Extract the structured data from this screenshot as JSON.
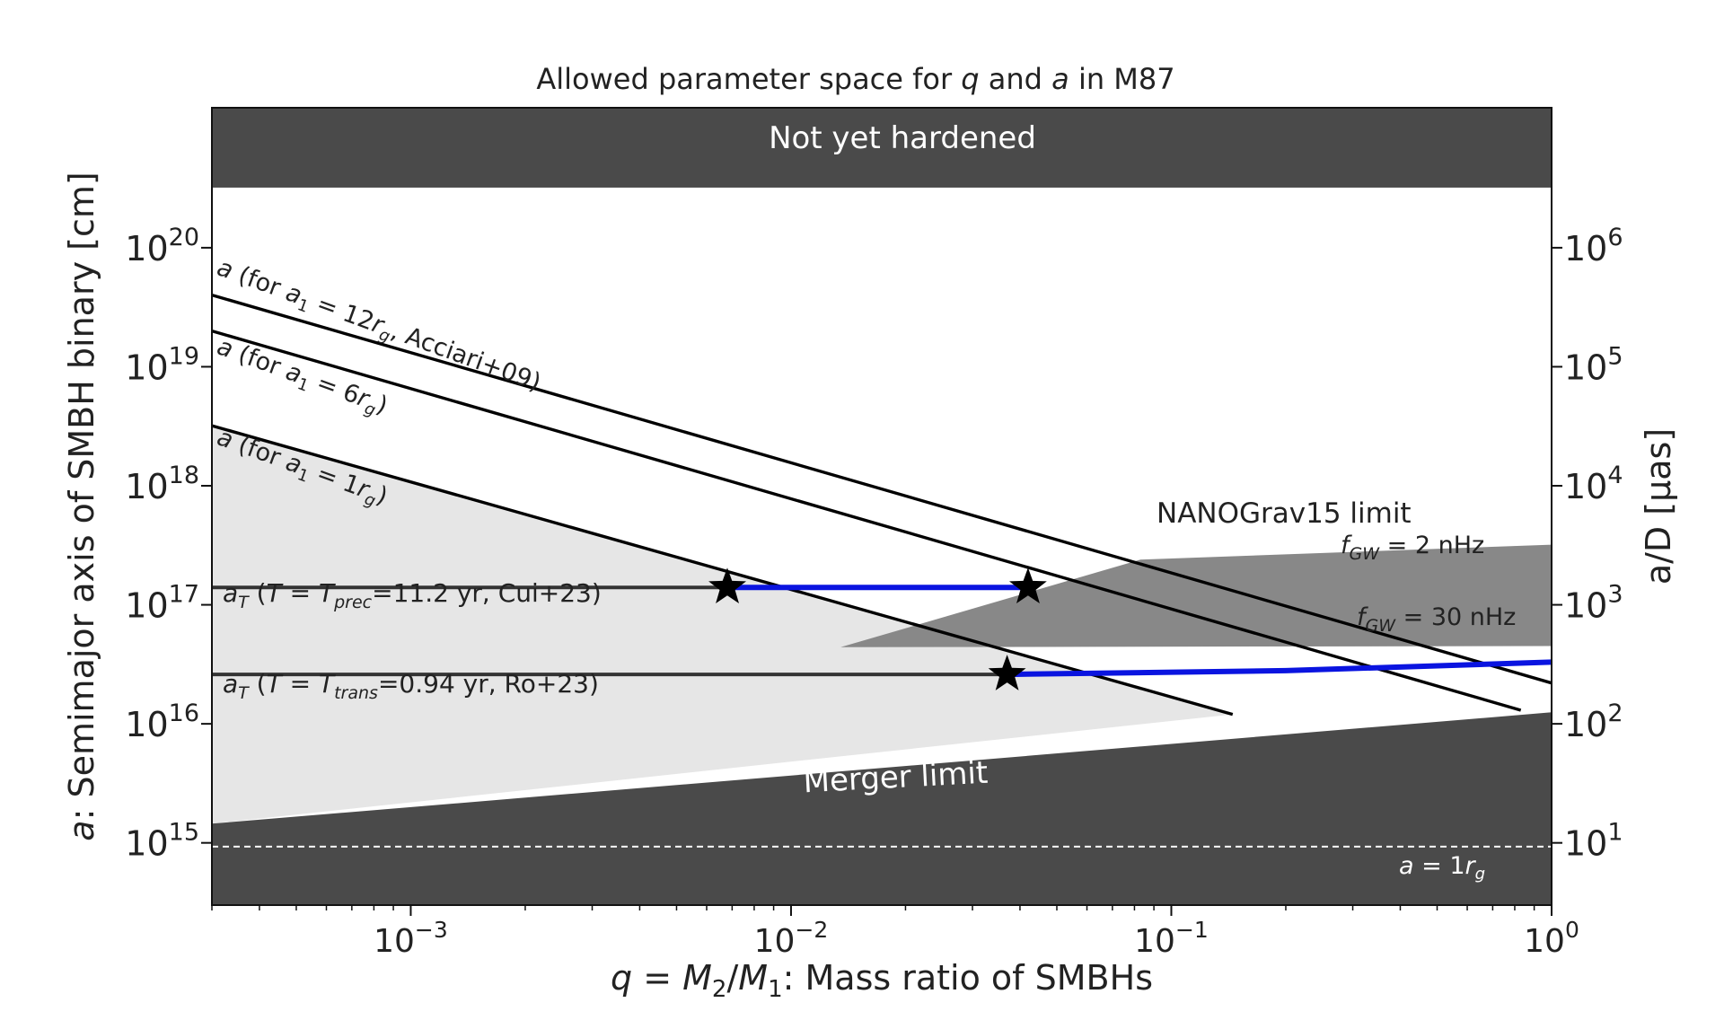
{
  "chart_data": {
    "type": "line",
    "title": "Allowed parameter space for q and a in M87",
    "xlabel": "q = M2/M1: Mass ratio of SMBHs",
    "ylabel": "a: Semimajor axis of SMBH binary [cm]",
    "y2label": "a/D [μas]",
    "xscale": "log",
    "yscale": "log",
    "xlim": [
      0.0003,
      1.0
    ],
    "ylim": [
      300000000000000.0,
      1.5e+21
    ],
    "y2lim": [
      3,
      15000000
    ],
    "x_ticks": [
      0.001,
      0.01,
      0.1,
      1
    ],
    "x_tick_labels": [
      {
        "base": "10",
        "exp": "−3"
      },
      {
        "base": "10",
        "exp": "−2"
      },
      {
        "base": "10",
        "exp": "−1"
      },
      {
        "base": "10",
        "exp": "0"
      }
    ],
    "y_ticks": [
      1000000000000000.0,
      1e+16,
      1e+17,
      1e+18,
      1e+19,
      1e+20
    ],
    "y_tick_labels": [
      {
        "base": "10",
        "exp": "15"
      },
      {
        "base": "10",
        "exp": "16"
      },
      {
        "base": "10",
        "exp": "17"
      },
      {
        "base": "10",
        "exp": "18"
      },
      {
        "base": "10",
        "exp": "19"
      },
      {
        "base": "10",
        "exp": "20"
      }
    ],
    "y2_ticks": [
      10,
      100,
      1000,
      10000,
      100000,
      1000000
    ],
    "y2_tick_labels": [
      {
        "base": "10",
        "exp": "1"
      },
      {
        "base": "10",
        "exp": "2"
      },
      {
        "base": "10",
        "exp": "3"
      },
      {
        "base": "10",
        "exp": "4"
      },
      {
        "base": "10",
        "exp": "5"
      },
      {
        "base": "10",
        "exp": "6"
      }
    ],
    "grid": false,
    "regions": [
      {
        "label": "Not yet hardened",
        "a_min": 3.2e+20,
        "color": "#4a4a4a"
      },
      {
        "label": "Merger limit",
        "boundary": {
          "q": [
            0.0003,
            1.0
          ],
          "a": [
            1450000000000000.0,
            1.25e+16
          ]
        },
        "color": "#4a4a4a"
      },
      {
        "label": "NANOGrav15 limit",
        "polygon": {
          "q": [
            0.0135,
            0.083,
            1.0,
            1.0,
            0.0135
          ],
          "a": [
            4.4e+16,
            2.4e+17,
            3.2e+17,
            4.5e+16,
            4.4e+16
          ]
        },
        "color": "#888888"
      },
      {
        "label": "",
        "note": "allowed region (light gray)",
        "polygon": {
          "q": [
            0.0003,
            0.0003,
            0.145
          ],
          "a": [
            1450000000000000.0,
            3.2e+18,
            1.2e+16
          ]
        },
        "color": "#e6e6e6"
      }
    ],
    "region_labels": {
      "nanograv_2nhz": "f_GW = 2 nHz",
      "nanograv_30nhz": "f_GW = 30 nHz"
    },
    "series": [
      {
        "name": "a (for a1 = 12rg, Acciari+09)",
        "q": [
          0.0003,
          1.0
        ],
        "a": [
          4e+19,
          2.2e+16
        ],
        "color": "#000000"
      },
      {
        "name": "a (for a1 = 6rg)",
        "q": [
          0.0003,
          0.83
        ],
        "a": [
          2e+19,
          1.3e+16
        ],
        "color": "#000000"
      },
      {
        "name": "a (for a1 = 1rg)",
        "q": [
          0.0003,
          0.145
        ],
        "a": [
          3.2e+18,
          1.2e+16
        ],
        "color": "#000000"
      }
    ],
    "horizontal_lines": [
      {
        "name": "aT (T = Tprec=11.2 yr, Cui+23)",
        "a": 1.4e+17,
        "q_range": [
          0.0003,
          0.0068
        ],
        "color": "#333333"
      },
      {
        "name": "aT (T = Ttrans=0.94 yr, Ro+23)",
        "a": 2.6e+16,
        "q_range": [
          0.0003,
          0.037
        ],
        "color": "#333333"
      },
      {
        "name": "a = 1rg",
        "a": 930000000000000.0,
        "q_range": [
          0.0003,
          1.0
        ],
        "color": "#ffffff",
        "dashed": true
      }
    ],
    "blue_segments": [
      {
        "q": [
          0.0068,
          0.042
        ],
        "a": [
          1.4e+17,
          1.4e+17
        ],
        "color": "#0a14e0"
      },
      {
        "q": [
          0.037,
          0.2,
          1.0
        ],
        "a": [
          2.6e+16,
          2.8e+16,
          3.3e+16
        ],
        "color": "#0a14e0"
      }
    ],
    "star_markers": [
      {
        "q": 0.0068,
        "a": 1.4e+17
      },
      {
        "q": 0.042,
        "a": 1.4e+17
      },
      {
        "q": 0.037,
        "a": 2.6e+16
      }
    ],
    "annotations": {
      "line_12rg": "a (for a1 = 12rg, Acciari+09)",
      "line_6rg": "a (for a1 = 6rg)",
      "line_1rg": "a (for a1 = 1rg)",
      "line_prec": "aT (T = Tprec=11.2 yr, Cui+23)",
      "line_trans": "aT (T = Ttrans=0.94 yr, Ro+23)",
      "line_1rg_dashed": "a = 1rg"
    }
  }
}
